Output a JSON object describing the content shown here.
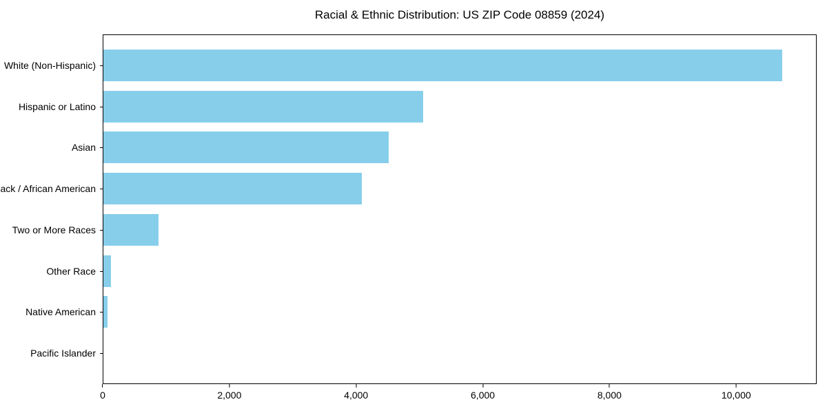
{
  "chart_data": {
    "type": "bar",
    "orientation": "horizontal",
    "title": "Racial & Ethnic Distribution: US ZIP Code 08859 (2024)",
    "categories": [
      "White (Non-Hispanic)",
      "Hispanic or Latino",
      "Asian",
      "Black / African American",
      "Two or More Races",
      "Other Race",
      "Native American",
      "Pacific Islander"
    ],
    "values": [
      10740,
      5060,
      4510,
      4090,
      875,
      120,
      60,
      0
    ],
    "xlabel": "",
    "ylabel": "",
    "xlim": [
      0,
      11270
    ],
    "x_ticks": [
      0,
      2000,
      4000,
      6000,
      8000,
      10000
    ],
    "x_tick_labels": [
      "0",
      "2,000",
      "4,000",
      "6,000",
      "8,000",
      "10,000"
    ],
    "bar_color": "#87CEEB",
    "background_color": "#ffffff",
    "spine_color": "#000000",
    "grid": false,
    "legend": null
  }
}
